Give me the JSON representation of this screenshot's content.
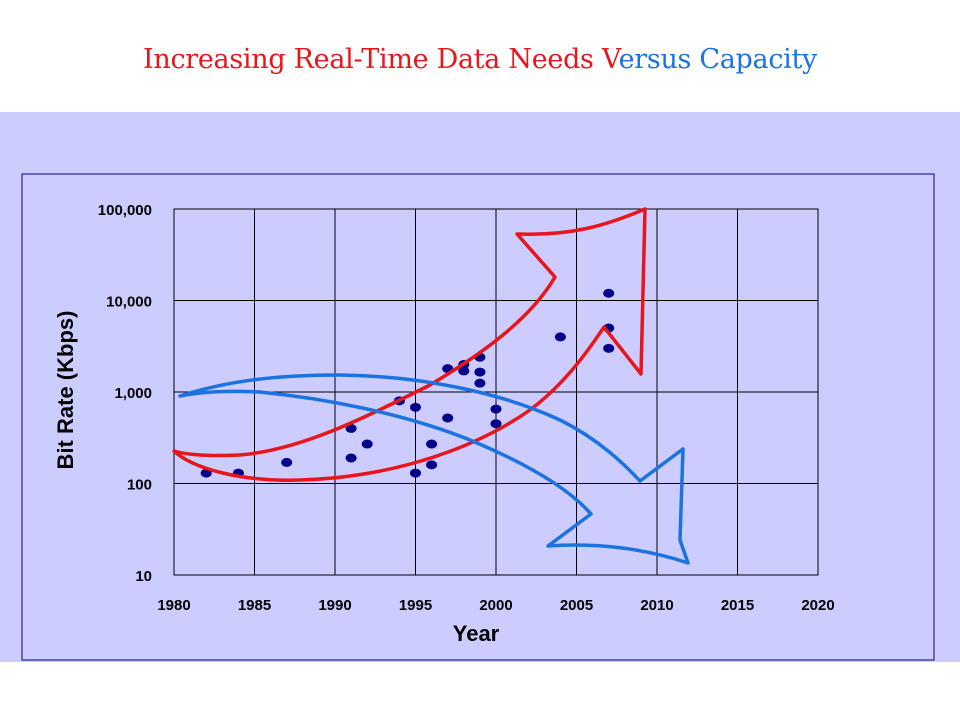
{
  "title": {
    "part_red": "Increasing Real-Time Data Needs V",
    "part_blue": "ersus Capacity"
  },
  "colors": {
    "needs": "#e8151b",
    "capacity": "#1a73e0",
    "points": "#00008b",
    "band": "#ccccff"
  },
  "chart_data": {
    "type": "scatter",
    "title": "Increasing Real-Time Data Needs Versus Capacity",
    "xlabel": "Year",
    "ylabel": "Bit Rate (Kbps)",
    "xlim": [
      1980,
      2020
    ],
    "ylim": [
      10,
      100000
    ],
    "yscale": "log",
    "grid": true,
    "x_ticks": [
      1980,
      1985,
      1990,
      1995,
      2000,
      2005,
      2010,
      2015,
      2020
    ],
    "x_tick_labels": [
      "1980",
      "1985",
      "1990",
      "1995",
      "2000",
      "2005",
      "2010",
      "2015",
      "2020"
    ],
    "y_ticks": [
      10,
      100,
      1000,
      10000,
      100000
    ],
    "y_tick_labels": [
      "10",
      "100",
      "1,000",
      "10,000",
      "100,000"
    ],
    "series": [
      {
        "name": "Data needs",
        "points": [
          {
            "x": 1982,
            "y": 130
          },
          {
            "x": 1984,
            "y": 130
          },
          {
            "x": 1987,
            "y": 170
          },
          {
            "x": 1991,
            "y": 400
          },
          {
            "x": 1991,
            "y": 190
          },
          {
            "x": 1992,
            "y": 270
          },
          {
            "x": 1994,
            "y": 800
          },
          {
            "x": 1995,
            "y": 680
          },
          {
            "x": 1995,
            "y": 130
          },
          {
            "x": 1996,
            "y": 270
          },
          {
            "x": 1996,
            "y": 160
          },
          {
            "x": 1997,
            "y": 1800
          },
          {
            "x": 1997,
            "y": 520
          },
          {
            "x": 1998,
            "y": 2000
          },
          {
            "x": 1998,
            "y": 1700
          },
          {
            "x": 1999,
            "y": 2400
          },
          {
            "x": 1999,
            "y": 1650
          },
          {
            "x": 1999,
            "y": 1250
          },
          {
            "x": 2000,
            "y": 650
          },
          {
            "x": 2000,
            "y": 450
          },
          {
            "x": 2004,
            "y": 4000
          },
          {
            "x": 2007,
            "y": 12000
          },
          {
            "x": 2007,
            "y": 5000
          },
          {
            "x": 2007,
            "y": 3000
          }
        ]
      }
    ],
    "annotations": [
      {
        "type": "arrow",
        "direction": "increasing",
        "color": "red",
        "label": "Data needs"
      },
      {
        "type": "arrow",
        "direction": "decreasing",
        "color": "blue",
        "label": "Capacity"
      }
    ]
  }
}
